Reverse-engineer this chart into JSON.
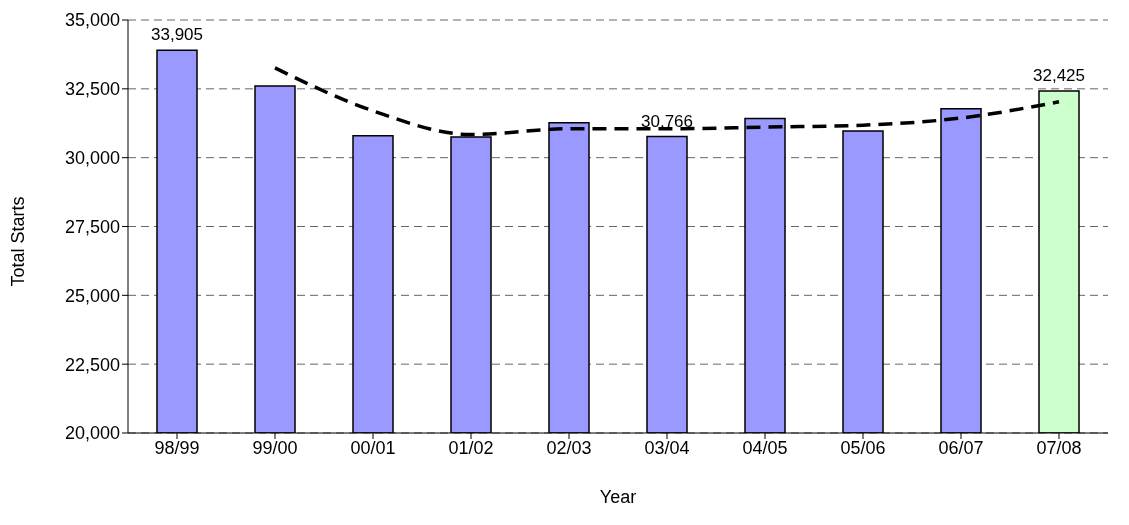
{
  "chart_data": {
    "type": "bar",
    "xlabel": "Year",
    "ylabel": "Total Starts",
    "categories": [
      "98/99",
      "99/00",
      "00/01",
      "01/02",
      "02/03",
      "03/04",
      "04/05",
      "05/06",
      "06/07",
      "07/08"
    ],
    "series": [
      {
        "values": [
          33905,
          32600,
          30800,
          30750,
          31270,
          30766,
          31420,
          30970,
          31780,
          32425
        ],
        "colors": [
          "#9999ff",
          "#9999ff",
          "#9999ff",
          "#9999ff",
          "#9999ff",
          "#9999ff",
          "#9999ff",
          "#9999ff",
          "#9999ff",
          "#ccffcc"
        ],
        "value_labels": [
          "33,905",
          null,
          null,
          null,
          null,
          "30,766",
          null,
          null,
          null,
          "32,425"
        ]
      },
      {
        "type": "line",
        "values": [
          null,
          33260,
          31700,
          30840,
          31050,
          31050,
          31110,
          31180,
          31440,
          32030
        ],
        "color": "#000000",
        "line_style": "dashed",
        "marker": "none"
      }
    ],
    "ylim": [
      20000,
      35000
    ],
    "yticks": [
      {
        "value": 20000,
        "label": "20,000"
      },
      {
        "value": 22500,
        "label": "22,500"
      },
      {
        "value": 25000,
        "label": "25,000"
      },
      {
        "value": 27500,
        "label": "27,500"
      },
      {
        "value": 30000,
        "label": "30,000"
      },
      {
        "value": 32500,
        "label": "32,500"
      },
      {
        "value": 35000,
        "label": "35,000"
      }
    ],
    "grid": "y",
    "legend": false
  }
}
